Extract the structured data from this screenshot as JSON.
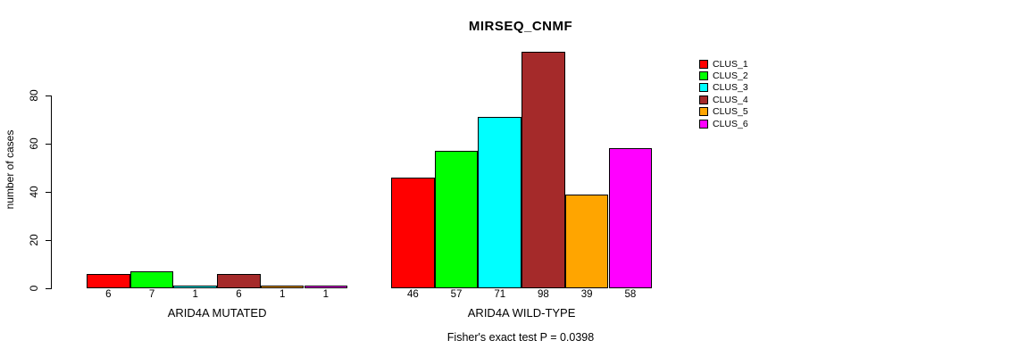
{
  "chart_data": {
    "type": "bar",
    "title": "MIRSEQ_CNMF",
    "ylabel": "number of cases",
    "xlabel": "",
    "annotation": "Fisher's exact test P = 0.0398",
    "y_ticks": [
      0,
      20,
      40,
      60,
      80
    ],
    "ylim": [
      0,
      98
    ],
    "grid": false,
    "legend_position": "right",
    "bar_value_labels": true,
    "categories": [
      "ARID4A MUTATED",
      "ARID4A WILD-TYPE"
    ],
    "series": [
      {
        "name": "CLUS_1",
        "color": "#ff0000",
        "values": [
          6,
          46
        ]
      },
      {
        "name": "CLUS_2",
        "color": "#00ff00",
        "values": [
          7,
          57
        ]
      },
      {
        "name": "CLUS_3",
        "color": "#00ffff",
        "values": [
          1,
          71
        ]
      },
      {
        "name": "CLUS_4",
        "color": "#a52a2a",
        "values": [
          6,
          98
        ]
      },
      {
        "name": "CLUS_5",
        "color": "#ffa500",
        "values": [
          1,
          39
        ]
      },
      {
        "name": "CLUS_6",
        "color": "#ff00ff",
        "values": [
          1,
          58
        ]
      }
    ],
    "text_color": "#000000",
    "background_color": "#ffffff"
  }
}
